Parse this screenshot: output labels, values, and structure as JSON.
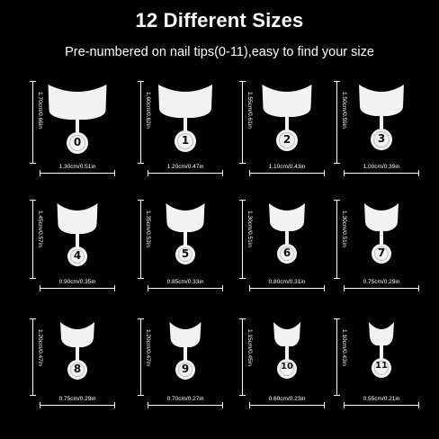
{
  "title": "12 Different Sizes",
  "subtitle": "Pre-numbered on nail tips(0-11),easy to find your size",
  "tips": [
    {
      "number": "0",
      "length": "1.70cm/0.66in",
      "width": "1.30cm/0.51in",
      "w_cm": 1.3,
      "l_cm": 1.7
    },
    {
      "number": "1",
      "length": "1.60cm/0.62in",
      "width": "1.20cm/0.47in",
      "w_cm": 1.2,
      "l_cm": 1.6
    },
    {
      "number": "2",
      "length": "1.55cm/0.61in",
      "width": "1.10cm/0.43in",
      "w_cm": 1.1,
      "l_cm": 1.55
    },
    {
      "number": "3",
      "length": "1.50cm/0.59in",
      "width": "1.00cm/0.39in",
      "w_cm": 1.0,
      "l_cm": 1.5
    },
    {
      "number": "4",
      "length": "1.45cm/0.57in",
      "width": "0.90cm/0.35in",
      "w_cm": 0.9,
      "l_cm": 1.45
    },
    {
      "number": "5",
      "length": "1.35cm/0.53in",
      "width": "0.85cm/0.33in",
      "w_cm": 0.85,
      "l_cm": 1.35
    },
    {
      "number": "6",
      "length": "1.30cm/0.51in",
      "width": "0.80cm/0.31in",
      "w_cm": 0.8,
      "l_cm": 1.3
    },
    {
      "number": "7",
      "length": "1.30cm/0.51in",
      "width": "0.75cm/0.29in",
      "w_cm": 0.75,
      "l_cm": 1.3
    },
    {
      "number": "8",
      "length": "1.20cm/0.47in",
      "width": "0.75cm/0.29in",
      "w_cm": 0.75,
      "l_cm": 1.2
    },
    {
      "number": "9",
      "length": "1.20cm/0.47in",
      "width": "0.70cm/0.27in",
      "w_cm": 0.7,
      "l_cm": 1.2
    },
    {
      "number": "10",
      "length": "1.15cm/0.45in",
      "width": "0.60cm/0.23in",
      "w_cm": 0.6,
      "l_cm": 1.15
    },
    {
      "number": "11",
      "length": "1.10cm/0.43in",
      "width": "0.55cm/0.21in",
      "w_cm": 0.55,
      "l_cm": 1.1
    }
  ],
  "colors": {
    "background": "#000000",
    "tip": "#f2f2f2",
    "text": "#ffffff"
  }
}
